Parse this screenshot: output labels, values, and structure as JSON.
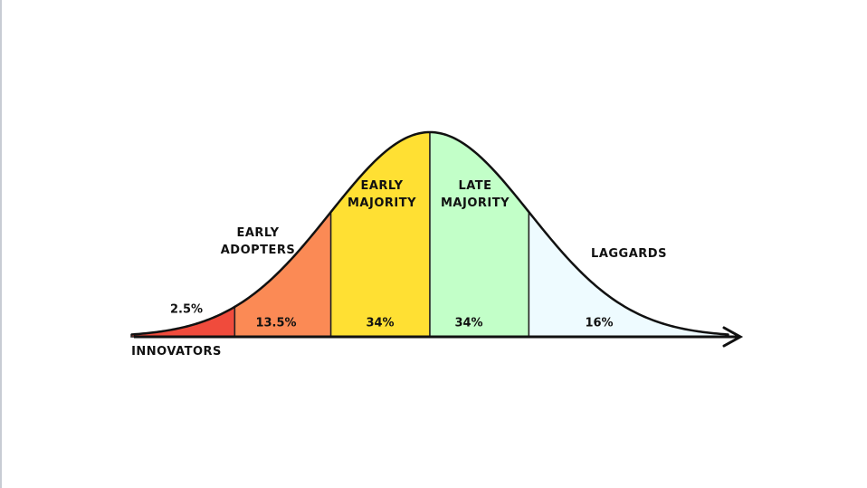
{
  "chart_data": {
    "type": "bell",
    "categories": [
      "INNOVATORS",
      "EARLY ADOPTERS",
      "EARLY MAJORITY",
      "LATE MAJORITY",
      "LAGGARDS"
    ],
    "values": [
      2.5,
      13.5,
      34,
      34,
      16
    ],
    "value_labels": [
      "2.5%",
      "13.5%",
      "34%",
      "34%",
      "16%"
    ],
    "colors": [
      "#f04b3c",
      "#fb8a55",
      "#ffe033",
      "#c2ffc8",
      "#eefbff"
    ]
  }
}
